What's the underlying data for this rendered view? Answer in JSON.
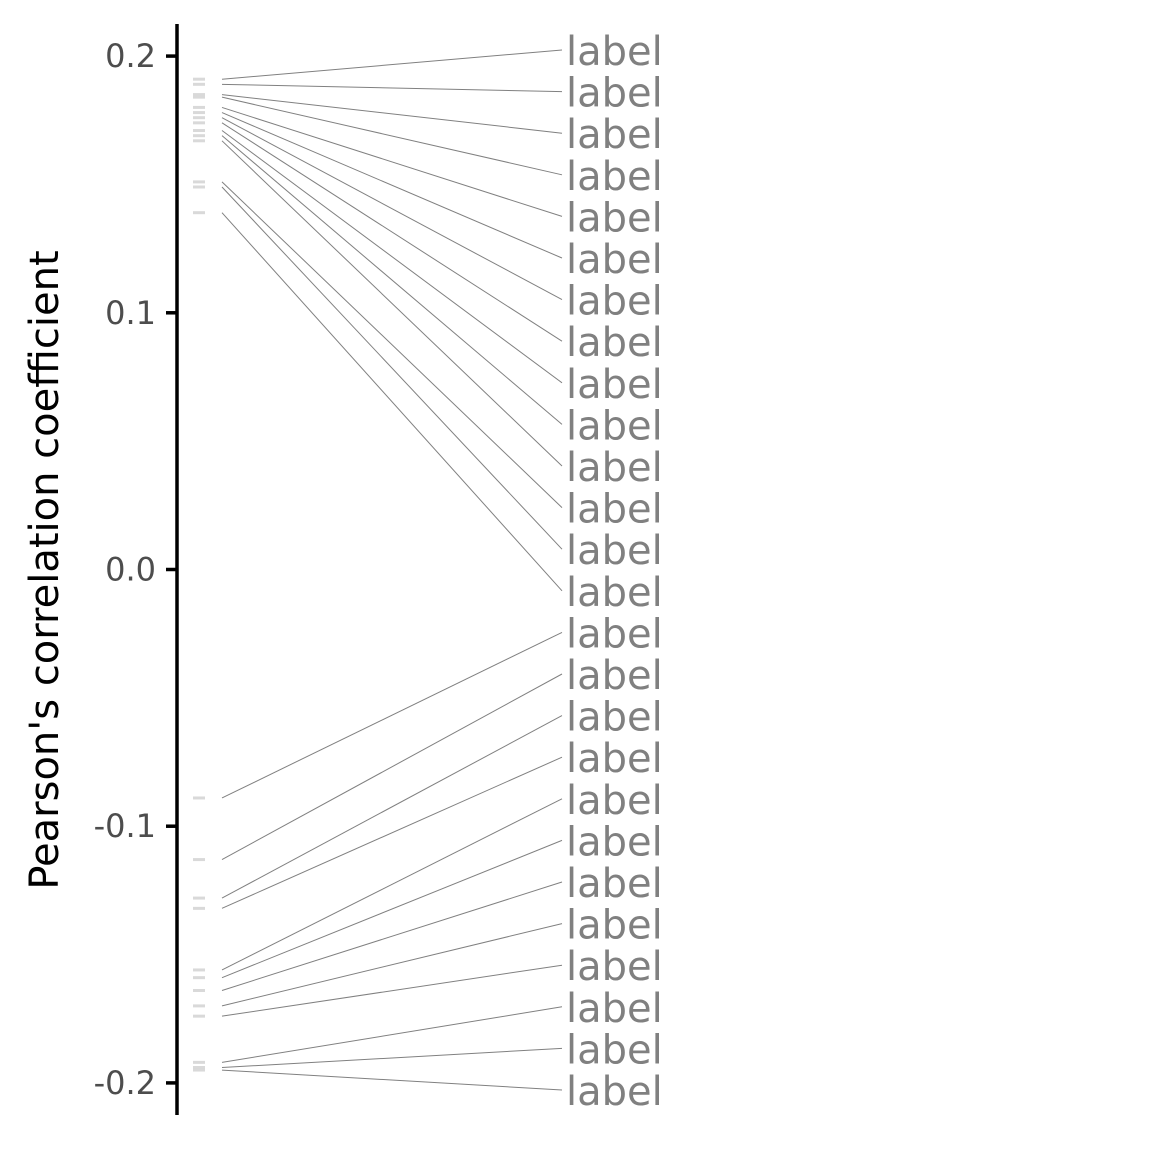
{
  "chart_data": {
    "type": "scatter",
    "ylabel": "Pearson's correlation coefficient",
    "ylim": [
      -0.2125,
      0.2125
    ],
    "yticks": [
      0.2,
      0.1,
      0.0,
      -0.1,
      -0.2
    ],
    "ytick_labels": [
      "0.2",
      "0.1",
      "0.0",
      "-0.1",
      "-0.2"
    ],
    "grid": false,
    "legend": "none",
    "colors": {
      "axis": "#000000",
      "tick_text": "#4d4d4d",
      "marker": "#d9d9d9",
      "connector": "#808080",
      "label_text": "#808080"
    },
    "points": [
      {
        "y": 0.191,
        "label": "label"
      },
      {
        "y": 0.189,
        "label": "label"
      },
      {
        "y": 0.185,
        "label": "label"
      },
      {
        "y": 0.184,
        "label": "label"
      },
      {
        "y": 0.18,
        "label": "label"
      },
      {
        "y": 0.178,
        "label": "label"
      },
      {
        "y": 0.176,
        "label": "label"
      },
      {
        "y": 0.174,
        "label": "label"
      },
      {
        "y": 0.171,
        "label": "label"
      },
      {
        "y": 0.169,
        "label": "label"
      },
      {
        "y": 0.167,
        "label": "label"
      },
      {
        "y": 0.151,
        "label": "label"
      },
      {
        "y": 0.149,
        "label": "label"
      },
      {
        "y": 0.139,
        "label": "label"
      },
      {
        "y": -0.089,
        "label": "label"
      },
      {
        "y": -0.113,
        "label": "label"
      },
      {
        "y": -0.128,
        "label": "label"
      },
      {
        "y": -0.132,
        "label": "label"
      },
      {
        "y": -0.156,
        "label": "label"
      },
      {
        "y": -0.159,
        "label": "label"
      },
      {
        "y": -0.164,
        "label": "label"
      },
      {
        "y": -0.17,
        "label": "label"
      },
      {
        "y": -0.174,
        "label": "label"
      },
      {
        "y": -0.192,
        "label": "label"
      },
      {
        "y": -0.194,
        "label": "label"
      },
      {
        "y": -0.195,
        "label": "label"
      }
    ]
  }
}
